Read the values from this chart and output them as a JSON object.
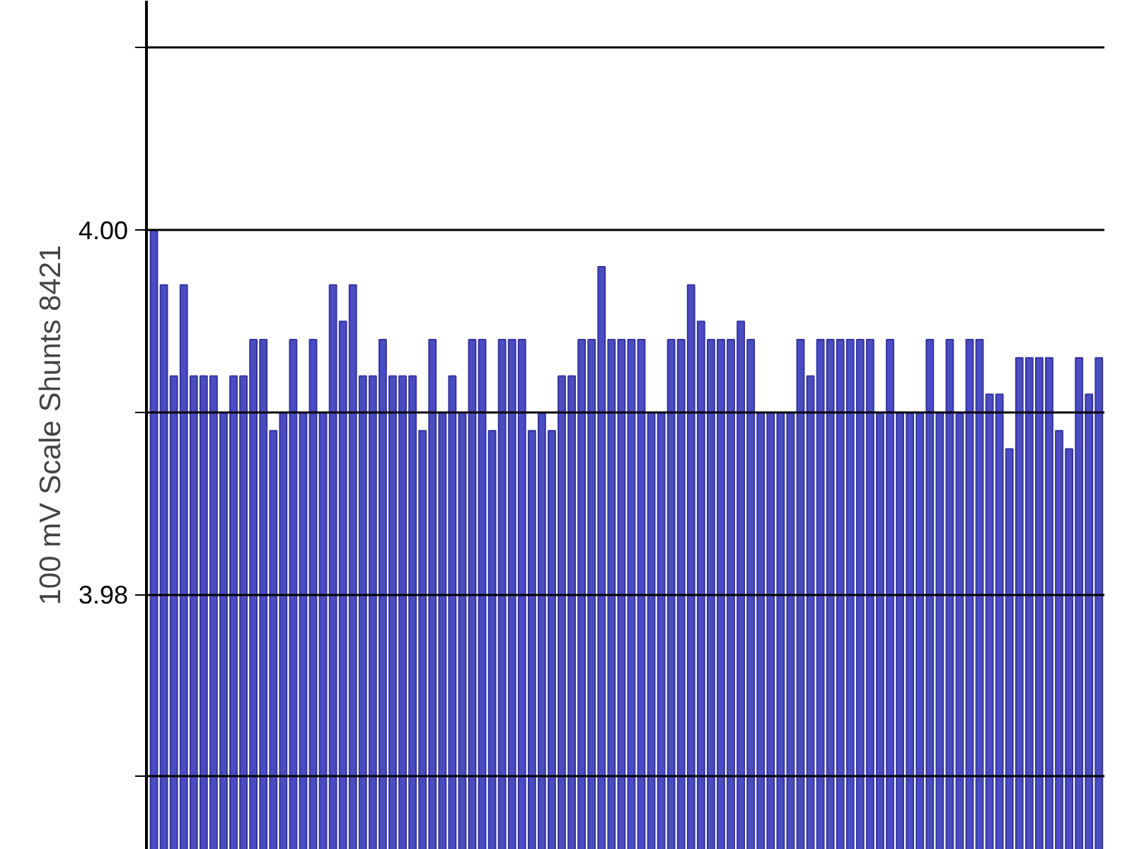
{
  "chart_data": {
    "type": "bar",
    "ylabel": "100 mV Scale Shunts 8421",
    "categories": [
      null,
      null,
      null,
      null,
      null,
      null,
      null,
      null,
      null,
      null,
      null,
      null,
      null,
      null,
      null,
      null,
      null,
      null,
      null,
      null,
      null,
      null,
      null,
      null,
      null,
      null,
      null,
      null,
      null,
      null,
      null,
      null,
      null,
      null,
      null,
      null,
      null,
      null,
      null,
      null,
      null,
      null,
      null,
      null,
      null,
      null,
      null,
      null,
      null,
      null,
      null,
      null,
      null,
      null,
      null,
      null,
      null,
      null,
      null,
      null,
      null,
      null,
      null,
      null,
      null,
      null,
      null,
      null,
      null,
      null,
      null,
      null,
      null,
      null,
      null,
      null,
      null,
      null,
      null,
      null,
      null,
      null,
      null,
      null,
      null,
      null,
      null,
      null,
      null,
      null,
      null,
      null,
      null,
      null,
      null,
      null
    ],
    "values": [
      4.0,
      3.997,
      3.992,
      3.997,
      3.992,
      3.992,
      3.992,
      3.99,
      3.992,
      3.992,
      3.994,
      3.994,
      3.989,
      3.99,
      3.994,
      3.99,
      3.994,
      3.99,
      3.997,
      3.995,
      3.997,
      3.992,
      3.992,
      3.994,
      3.992,
      3.992,
      3.992,
      3.989,
      3.994,
      3.99,
      3.992,
      3.99,
      3.994,
      3.994,
      3.989,
      3.994,
      3.994,
      3.994,
      3.989,
      3.99,
      3.989,
      3.992,
      3.992,
      3.994,
      3.994,
      3.998,
      3.994,
      3.994,
      3.994,
      3.994,
      3.99,
      3.99,
      3.994,
      3.994,
      3.997,
      3.995,
      3.994,
      3.994,
      3.994,
      3.995,
      3.994,
      3.99,
      3.99,
      3.99,
      3.99,
      3.994,
      3.992,
      3.994,
      3.994,
      3.994,
      3.994,
      3.994,
      3.994,
      3.99,
      3.994,
      3.99,
      3.99,
      3.99,
      3.994,
      3.99,
      3.994,
      3.99,
      3.994,
      3.994,
      3.991,
      3.991,
      3.988,
      3.993,
      3.993,
      3.993,
      3.993,
      3.989,
      3.988,
      3.993,
      3.991,
      3.993
    ],
    "color": "#4c4cc2",
    "ylim": [
      3.966,
      4.0126
    ],
    "yticks": [
      {
        "value": 3.97,
        "label": null
      },
      3.98,
      {
        "value": 3.99,
        "label": null
      },
      {
        "value": 4.0,
        "label": "4.00"
      },
      {
        "value": 4.01,
        "label": null
      }
    ],
    "grid": "y",
    "tick_labels": "y"
  }
}
